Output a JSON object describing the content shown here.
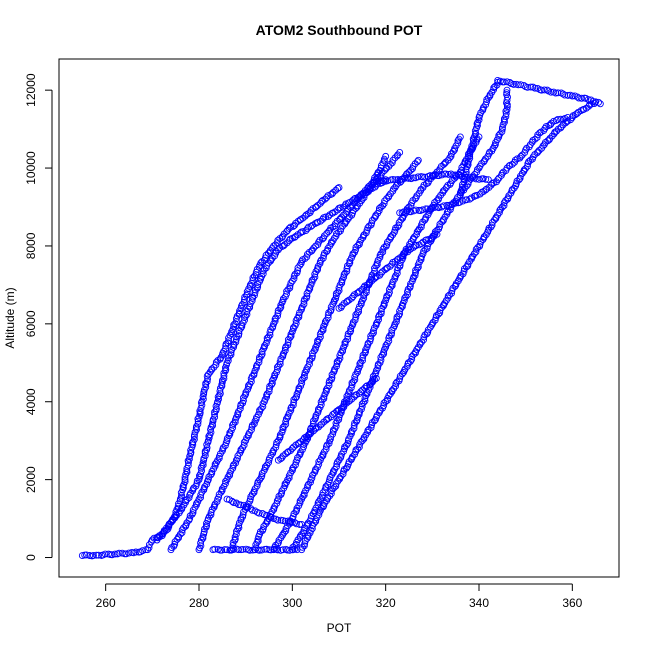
{
  "chart_data": {
    "type": "scatter",
    "title": "ATOM2 Southbound POT",
    "xlabel": "POT",
    "ylabel": "Altitude (m)",
    "xlim": [
      250,
      370
    ],
    "ylim": [
      -500,
      12800
    ],
    "xticks": [
      260,
      280,
      300,
      320,
      340,
      360
    ],
    "yticks": [
      0,
      2000,
      4000,
      6000,
      8000,
      10000,
      12000
    ],
    "grid": false,
    "marker": "open-circle",
    "color": "#0000ff",
    "series": [
      {
        "points": [
          [
            255,
            50
          ],
          [
            258,
            60
          ],
          [
            262,
            90
          ],
          [
            266,
            120
          ],
          [
            269,
            200
          ],
          [
            270,
            450
          ],
          [
            272,
            600
          ],
          [
            274,
            900
          ],
          [
            276,
            1200
          ],
          [
            278,
            1600
          ],
          [
            280,
            2000
          ],
          [
            281,
            2500
          ],
          [
            282,
            3000
          ],
          [
            283,
            3500
          ],
          [
            284,
            4000
          ],
          [
            285,
            4500
          ],
          [
            286,
            5000
          ],
          [
            288,
            5600
          ],
          [
            290,
            6200
          ],
          [
            292,
            6800
          ],
          [
            294,
            7400
          ],
          [
            297,
            7900
          ],
          [
            300,
            8200
          ],
          [
            304,
            8500
          ],
          [
            308,
            8800
          ],
          [
            312,
            9100
          ],
          [
            316,
            9400
          ],
          [
            320,
            9700
          ]
        ]
      },
      {
        "points": [
          [
            271,
            450
          ],
          [
            273,
            700
          ],
          [
            275,
            1100
          ],
          [
            276,
            1500
          ],
          [
            277,
            2000
          ],
          [
            278,
            2600
          ],
          [
            279,
            3100
          ],
          [
            280,
            3600
          ],
          [
            281,
            4200
          ],
          [
            282,
            4700
          ],
          [
            285,
            5200
          ],
          [
            287,
            5800
          ],
          [
            289,
            6400
          ],
          [
            291,
            7000
          ],
          [
            293,
            7500
          ],
          [
            296,
            8000
          ],
          [
            299,
            8400
          ],
          [
            303,
            8800
          ],
          [
            307,
            9200
          ],
          [
            310,
            9500
          ]
        ]
      },
      {
        "points": [
          [
            274,
            200
          ],
          [
            276,
            600
          ],
          [
            278,
            1000
          ],
          [
            280,
            1500
          ],
          [
            282,
            2000
          ],
          [
            284,
            2500
          ],
          [
            286,
            3000
          ],
          [
            288,
            3600
          ],
          [
            290,
            4200
          ],
          [
            292,
            4800
          ],
          [
            294,
            5400
          ],
          [
            296,
            6000
          ],
          [
            298,
            6600
          ],
          [
            300,
            7100
          ],
          [
            302,
            7600
          ],
          [
            305,
            8000
          ],
          [
            308,
            8400
          ],
          [
            311,
            8800
          ],
          [
            314,
            9200
          ],
          [
            317,
            9600
          ],
          [
            319,
            10000
          ],
          [
            320,
            10300
          ]
        ]
      },
      {
        "points": [
          [
            280,
            200
          ],
          [
            281,
            600
          ],
          [
            282,
            1000
          ],
          [
            284,
            1500
          ],
          [
            286,
            2000
          ],
          [
            288,
            2500
          ],
          [
            290,
            3000
          ],
          [
            292,
            3500
          ],
          [
            294,
            4000
          ],
          [
            296,
            4600
          ],
          [
            298,
            5200
          ],
          [
            300,
            5800
          ],
          [
            302,
            6400
          ],
          [
            304,
            7000
          ],
          [
            306,
            7600
          ],
          [
            309,
            8200
          ],
          [
            312,
            8700
          ],
          [
            315,
            9200
          ],
          [
            318,
            9700
          ],
          [
            321,
            10100
          ],
          [
            323,
            10400
          ]
        ]
      },
      {
        "points": [
          [
            287,
            200
          ],
          [
            288,
            600
          ],
          [
            289,
            1000
          ],
          [
            291,
            1500
          ],
          [
            293,
            2000
          ],
          [
            295,
            2500
          ],
          [
            297,
            3000
          ],
          [
            299,
            3600
          ],
          [
            301,
            4200
          ],
          [
            303,
            4800
          ],
          [
            305,
            5400
          ],
          [
            307,
            6000
          ],
          [
            309,
            6600
          ],
          [
            311,
            7200
          ],
          [
            313,
            7800
          ],
          [
            316,
            8400
          ],
          [
            319,
            9000
          ],
          [
            322,
            9500
          ],
          [
            325,
            9900
          ],
          [
            327,
            10200
          ]
        ]
      },
      {
        "points": [
          [
            292,
            200
          ],
          [
            293,
            600
          ],
          [
            295,
            1000
          ],
          [
            297,
            1500
          ],
          [
            299,
            2000
          ],
          [
            301,
            2500
          ],
          [
            303,
            3000
          ],
          [
            305,
            3600
          ],
          [
            307,
            4200
          ],
          [
            309,
            4800
          ],
          [
            311,
            5400
          ],
          [
            313,
            6000
          ],
          [
            315,
            6600
          ],
          [
            317,
            7200
          ],
          [
            319,
            7800
          ],
          [
            322,
            8400
          ],
          [
            325,
            9000
          ],
          [
            328,
            9500
          ],
          [
            331,
            9900
          ],
          [
            334,
            10300
          ],
          [
            336,
            10800
          ]
        ]
      },
      {
        "points": [
          [
            296,
            200
          ],
          [
            298,
            600
          ],
          [
            300,
            1000
          ],
          [
            302,
            1500
          ],
          [
            304,
            2000
          ],
          [
            306,
            2500
          ],
          [
            308,
            3000
          ],
          [
            310,
            3600
          ],
          [
            312,
            4200
          ],
          [
            314,
            4800
          ],
          [
            316,
            5400
          ],
          [
            318,
            6000
          ],
          [
            320,
            6600
          ],
          [
            322,
            7200
          ],
          [
            324,
            7800
          ],
          [
            327,
            8400
          ],
          [
            330,
            9000
          ],
          [
            333,
            9500
          ],
          [
            336,
            9900
          ],
          [
            338,
            10400
          ],
          [
            340,
            10800
          ]
        ]
      },
      {
        "points": [
          [
            300,
            200
          ],
          [
            302,
            600
          ],
          [
            304,
            1000
          ],
          [
            306,
            1500
          ],
          [
            308,
            2000
          ],
          [
            310,
            2500
          ],
          [
            312,
            3000
          ],
          [
            314,
            3600
          ],
          [
            316,
            4200
          ],
          [
            318,
            4800
          ],
          [
            320,
            5400
          ],
          [
            322,
            6000
          ],
          [
            324,
            6600
          ],
          [
            326,
            7200
          ],
          [
            328,
            7800
          ],
          [
            331,
            8400
          ],
          [
            334,
            9000
          ],
          [
            337,
            9500
          ],
          [
            340,
            10000
          ],
          [
            343,
            10500
          ],
          [
            345,
            11000
          ],
          [
            346,
            11500
          ],
          [
            346,
            12000
          ]
        ]
      },
      {
        "points": [
          [
            302,
            200
          ],
          [
            304,
            700
          ],
          [
            306,
            1200
          ],
          [
            309,
            1800
          ],
          [
            312,
            2400
          ],
          [
            315,
            3000
          ],
          [
            318,
            3600
          ],
          [
            321,
            4200
          ],
          [
            324,
            4800
          ],
          [
            327,
            5400
          ],
          [
            330,
            6000
          ],
          [
            333,
            6600
          ],
          [
            336,
            7200
          ],
          [
            339,
            7800
          ],
          [
            342,
            8400
          ],
          [
            345,
            9000
          ],
          [
            348,
            9600
          ],
          [
            351,
            10200
          ],
          [
            354,
            10600
          ],
          [
            357,
            11000
          ],
          [
            361,
            11400
          ],
          [
            365,
            11700
          ]
        ]
      },
      {
        "points": [
          [
            344,
            12250
          ],
          [
            348,
            12150
          ],
          [
            352,
            12050
          ],
          [
            356,
            11950
          ],
          [
            360,
            11850
          ],
          [
            364,
            11750
          ],
          [
            366,
            11650
          ]
        ]
      },
      {
        "points": [
          [
            344,
            12200
          ],
          [
            342,
            11800
          ],
          [
            340,
            11300
          ],
          [
            339,
            10800
          ],
          [
            338,
            10300
          ],
          [
            337,
            9800
          ],
          [
            336,
            9300
          ]
        ]
      },
      {
        "points": [
          [
            323,
            8850
          ],
          [
            326,
            8900
          ],
          [
            329,
            8950
          ],
          [
            332,
            9000
          ],
          [
            335,
            9100
          ],
          [
            338,
            9200
          ],
          [
            341,
            9400
          ],
          [
            344,
            9700
          ],
          [
            346,
            10000
          ],
          [
            349,
            10300
          ],
          [
            351,
            10600
          ],
          [
            353,
            10900
          ],
          [
            356,
            11200
          ],
          [
            359,
            11300
          ]
        ]
      },
      {
        "points": [
          [
            318,
            9650
          ],
          [
            322,
            9700
          ],
          [
            326,
            9750
          ],
          [
            330,
            9800
          ],
          [
            334,
            9850
          ],
          [
            338,
            9750
          ],
          [
            342,
            9700
          ]
        ]
      },
      {
        "points": [
          [
            283,
            200
          ],
          [
            286,
            200
          ],
          [
            289,
            200
          ],
          [
            292,
            200
          ],
          [
            295,
            200
          ],
          [
            298,
            200
          ],
          [
            301,
            200
          ]
        ]
      },
      {
        "points": [
          [
            286,
            1500
          ],
          [
            288,
            1400
          ],
          [
            290,
            1300
          ],
          [
            292,
            1200
          ],
          [
            294,
            1100
          ],
          [
            296,
            1000
          ],
          [
            298,
            950
          ],
          [
            300,
            900
          ],
          [
            302,
            850
          ]
        ]
      },
      {
        "points": [
          [
            297,
            2500
          ],
          [
            300,
            2800
          ],
          [
            303,
            3100
          ],
          [
            306,
            3400
          ],
          [
            309,
            3700
          ],
          [
            312,
            4000
          ],
          [
            315,
            4300
          ],
          [
            318,
            4600
          ]
        ]
      },
      {
        "points": [
          [
            310,
            6400
          ],
          [
            313,
            6700
          ],
          [
            316,
            7000
          ],
          [
            319,
            7300
          ],
          [
            322,
            7600
          ],
          [
            325,
            7900
          ],
          [
            328,
            8100
          ],
          [
            331,
            8300
          ]
        ]
      }
    ]
  }
}
